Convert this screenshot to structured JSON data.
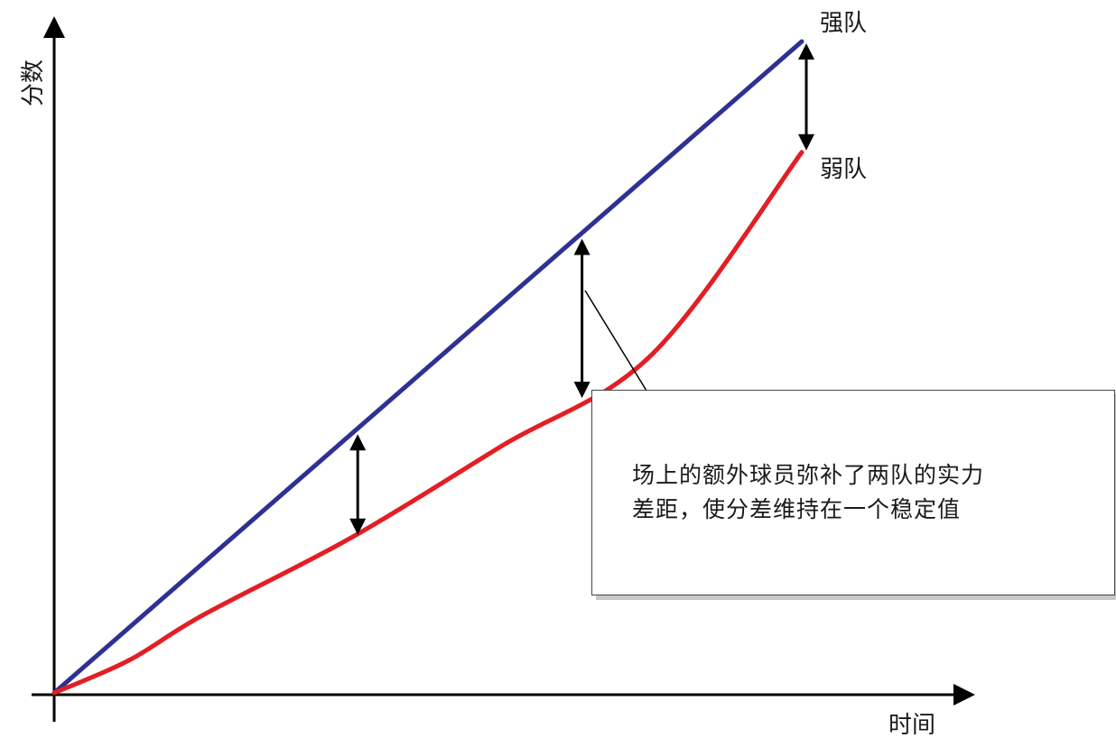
{
  "chart_data": {
    "type": "line",
    "xlabel": "时间",
    "ylabel": "分数",
    "grid": false,
    "series": [
      {
        "name": "强队",
        "color": "#2e3192",
        "x": [
          0,
          1
        ],
        "y": [
          0,
          1
        ]
      },
      {
        "name": "弱队",
        "color": "#e31e24",
        "x": [
          0,
          0.1,
          0.2,
          0.4,
          0.6,
          0.8,
          1
        ],
        "y": [
          0,
          0.05,
          0.12,
          0.24,
          0.38,
          0.52,
          0.83
        ]
      }
    ],
    "gap_markers_x": [
      0.4,
      0.7,
      1
    ],
    "annotation": {
      "line1": "场上的额外球员弥补了两队的实力",
      "line2": "差距，使分差维持在一个稳定值"
    }
  }
}
